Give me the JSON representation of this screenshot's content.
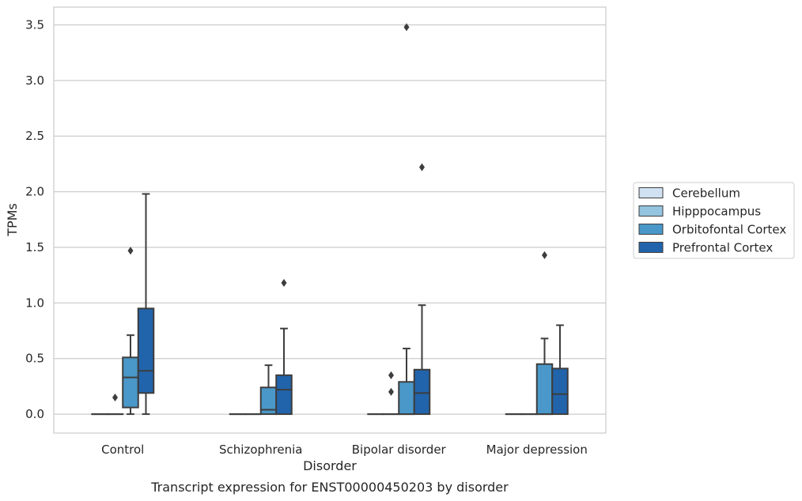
{
  "chart_data": {
    "type": "box",
    "title": "",
    "caption": "Transcript expression for ENST00000450203 by disorder",
    "xlabel": "Disorder",
    "ylabel": "TPMs",
    "ylim": [
      -0.17,
      3.66
    ],
    "yticks": [
      0.0,
      0.5,
      1.0,
      1.5,
      2.0,
      2.5,
      3.0,
      3.5
    ],
    "ytick_labels": [
      "0.0",
      "0.5",
      "1.0",
      "1.5",
      "2.0",
      "2.5",
      "3.0",
      "3.5"
    ],
    "grid": "horizontal",
    "legend_position": "right",
    "categories": [
      "Control",
      "Schizophrenia",
      "Bipolar disorder",
      "Major depression"
    ],
    "series": [
      {
        "name": "Cerebellum",
        "color": "#d0e1f2",
        "boxes": [
          {
            "whislo": 0,
            "q1": 0,
            "med": 0,
            "q3": 0,
            "whishi": 0,
            "fliers": []
          },
          {
            "whislo": 0,
            "q1": 0,
            "med": 0,
            "q3": 0,
            "whishi": 0,
            "fliers": []
          },
          {
            "whislo": 0,
            "q1": 0,
            "med": 0,
            "q3": 0,
            "whishi": 0,
            "fliers": []
          },
          {
            "whislo": 0,
            "q1": 0,
            "med": 0,
            "q3": 0,
            "whishi": 0,
            "fliers": []
          }
        ]
      },
      {
        "name": "Hipppocampus",
        "color": "#94c4df",
        "boxes": [
          {
            "whislo": 0,
            "q1": 0,
            "med": 0,
            "q3": 0,
            "whishi": 0,
            "fliers": [
              0.15
            ]
          },
          {
            "whislo": 0,
            "q1": 0,
            "med": 0,
            "q3": 0,
            "whishi": 0,
            "fliers": []
          },
          {
            "whislo": 0,
            "q1": 0,
            "med": 0,
            "q3": 0,
            "whishi": 0,
            "fliers": [
              0.2,
              0.35
            ]
          },
          {
            "whislo": 0,
            "q1": 0,
            "med": 0,
            "q3": 0,
            "whishi": 0,
            "fliers": []
          }
        ]
      },
      {
        "name": "Orbitofontal Cortex",
        "color": "#4a98c9",
        "boxes": [
          {
            "whislo": 0.0,
            "q1": 0.06,
            "med": 0.33,
            "q3": 0.51,
            "whishi": 0.71,
            "fliers": [
              1.47
            ]
          },
          {
            "whislo": 0.0,
            "q1": 0.0,
            "med": 0.04,
            "q3": 0.24,
            "whishi": 0.44,
            "fliers": []
          },
          {
            "whislo": 0.0,
            "q1": 0.0,
            "med": 0.0,
            "q3": 0.29,
            "whishi": 0.59,
            "fliers": [
              3.48
            ]
          },
          {
            "whislo": 0.0,
            "q1": 0.0,
            "med": 0.0,
            "q3": 0.45,
            "whishi": 0.68,
            "fliers": [
              1.43
            ]
          }
        ]
      },
      {
        "name": "Prefrontal Cortex",
        "color": "#2164ab",
        "boxes": [
          {
            "whislo": 0.0,
            "q1": 0.19,
            "med": 0.39,
            "q3": 0.95,
            "whishi": 1.98,
            "fliers": []
          },
          {
            "whislo": 0.0,
            "q1": 0.0,
            "med": 0.22,
            "q3": 0.35,
            "whishi": 0.77,
            "fliers": [
              1.18
            ]
          },
          {
            "whislo": 0.0,
            "q1": 0.0,
            "med": 0.19,
            "q3": 0.4,
            "whishi": 0.98,
            "fliers": [
              2.22
            ]
          },
          {
            "whislo": 0.0,
            "q1": 0.0,
            "med": 0.18,
            "q3": 0.41,
            "whishi": 0.8,
            "fliers": []
          }
        ]
      }
    ]
  }
}
